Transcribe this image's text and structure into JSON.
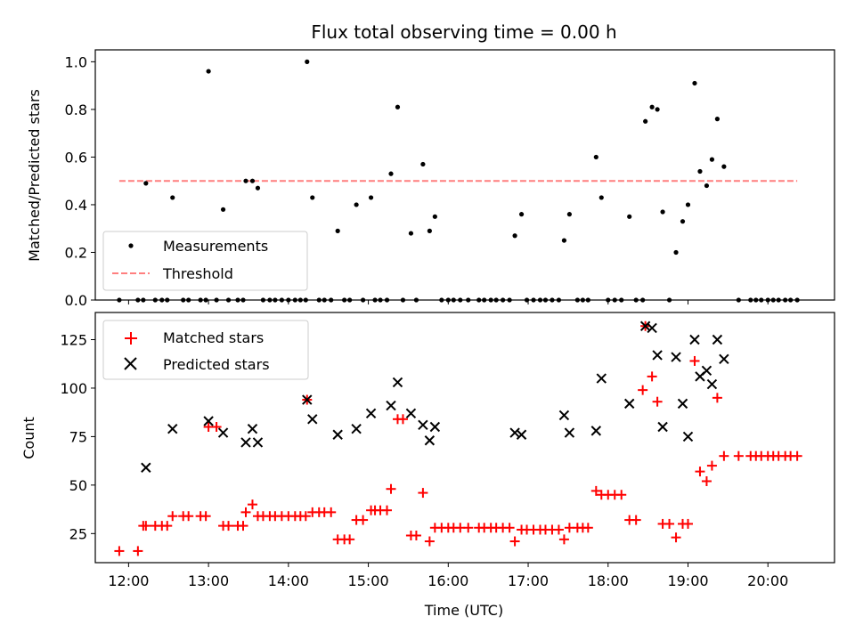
{
  "figure": {
    "title": "Flux total observing time = 0.00 h"
  },
  "colors": {
    "measurements": "#000000",
    "threshold": "#ff7f7f",
    "matched": "#ff0000",
    "predicted": "#000000"
  },
  "chart_data": [
    {
      "type": "scatter",
      "title": "Flux total observing time = 0.00 h",
      "xlabel": "",
      "ylabel": "Matched/Predicted stars",
      "xlim": [
        "11:35",
        "20:50"
      ],
      "ylim": [
        0,
        1.05
      ],
      "yticks": [
        "0.0",
        "0.2",
        "0.4",
        "0.6",
        "0.8",
        "1.0"
      ],
      "legend": {
        "placement": "lower-left",
        "entries": [
          "Measurements",
          "Threshold"
        ]
      },
      "series": [
        {
          "name": "Measurements",
          "marker": "dot",
          "color": "#000000",
          "points": [
            [
              "11:53",
              0
            ],
            [
              "12:07",
              0
            ],
            [
              "12:11",
              0
            ],
            [
              "12:13",
              0.49
            ],
            [
              "12:20",
              0
            ],
            [
              "12:25",
              0
            ],
            [
              "12:29",
              0
            ],
            [
              "12:33",
              0.43
            ],
            [
              "12:41",
              0
            ],
            [
              "12:45",
              0
            ],
            [
              "12:54",
              0
            ],
            [
              "12:58",
              0
            ],
            [
              "13:00",
              0.96
            ],
            [
              "13:06",
              0
            ],
            [
              "13:11",
              0.38
            ],
            [
              "13:15",
              0
            ],
            [
              "13:22",
              0
            ],
            [
              "13:26",
              0
            ],
            [
              "13:28",
              0.5
            ],
            [
              "13:33",
              0.5
            ],
            [
              "13:37",
              0.47
            ],
            [
              "13:41",
              0
            ],
            [
              "13:46",
              0
            ],
            [
              "13:50",
              0
            ],
            [
              "13:55",
              0
            ],
            [
              "14:00",
              0
            ],
            [
              "14:05",
              0
            ],
            [
              "14:09",
              0
            ],
            [
              "14:13",
              0
            ],
            [
              "14:14",
              1.0
            ],
            [
              "14:18",
              0.43
            ],
            [
              "14:23",
              0
            ],
            [
              "14:27",
              0
            ],
            [
              "14:32",
              0
            ],
            [
              "14:37",
              0.29
            ],
            [
              "14:42",
              0
            ],
            [
              "14:46",
              0
            ],
            [
              "14:51",
              0.4
            ],
            [
              "14:56",
              0
            ],
            [
              "15:02",
              0.43
            ],
            [
              "15:05",
              0
            ],
            [
              "15:09",
              0
            ],
            [
              "15:14",
              0
            ],
            [
              "15:17",
              0.53
            ],
            [
              "15:22",
              0.81
            ],
            [
              "15:26",
              0
            ],
            [
              "15:32",
              0.28
            ],
            [
              "15:36",
              0
            ],
            [
              "15:41",
              0.57
            ],
            [
              "15:46",
              0.29
            ],
            [
              "15:50",
              0.35
            ],
            [
              "15:55",
              0
            ],
            [
              "16:00",
              0
            ],
            [
              "16:04",
              0
            ],
            [
              "16:09",
              0
            ],
            [
              "16:15",
              0
            ],
            [
              "16:23",
              0
            ],
            [
              "16:27",
              0
            ],
            [
              "16:32",
              0
            ],
            [
              "16:36",
              0
            ],
            [
              "16:41",
              0
            ],
            [
              "16:46",
              0
            ],
            [
              "16:50",
              0.27
            ],
            [
              "16:55",
              0.36
            ],
            [
              "16:59",
              0
            ],
            [
              "17:04",
              0
            ],
            [
              "17:09",
              0
            ],
            [
              "17:13",
              0
            ],
            [
              "17:18",
              0
            ],
            [
              "17:23",
              0
            ],
            [
              "17:27",
              0.25
            ],
            [
              "17:31",
              0.36
            ],
            [
              "17:37",
              0
            ],
            [
              "17:41",
              0
            ],
            [
              "17:45",
              0
            ],
            [
              "17:51",
              0.6
            ],
            [
              "17:55",
              0.43
            ],
            [
              "18:00",
              0
            ],
            [
              "18:05",
              0
            ],
            [
              "18:10",
              0
            ],
            [
              "18:16",
              0.35
            ],
            [
              "18:21",
              0
            ],
            [
              "18:26",
              0
            ],
            [
              "18:28",
              0.75
            ],
            [
              "18:33",
              0.81
            ],
            [
              "18:37",
              0.8
            ],
            [
              "18:41",
              0.37
            ],
            [
              "18:46",
              0
            ],
            [
              "18:51",
              0.2
            ],
            [
              "18:56",
              0.33
            ],
            [
              "19:00",
              0.4
            ],
            [
              "19:05",
              0.91
            ],
            [
              "19:09",
              0.54
            ],
            [
              "19:14",
              0.48
            ],
            [
              "19:18",
              0.59
            ],
            [
              "19:22",
              0.76
            ],
            [
              "19:27",
              0.56
            ],
            [
              "19:38",
              0
            ],
            [
              "19:47",
              0
            ],
            [
              "19:51",
              0
            ],
            [
              "19:55",
              0
            ],
            [
              "20:00",
              0
            ],
            [
              "20:04",
              0
            ],
            [
              "20:08",
              0
            ],
            [
              "20:13",
              0
            ],
            [
              "20:17",
              0
            ],
            [
              "20:22",
              0
            ]
          ]
        },
        {
          "name": "Threshold",
          "style": "dashed",
          "color": "#ff7f7f",
          "x": [
            "11:53",
            "20:22"
          ],
          "y": [
            0.5,
            0.5
          ]
        }
      ]
    },
    {
      "type": "scatter",
      "xlabel": "Time (UTC)",
      "ylabel": "Count",
      "xlim": [
        "11:35",
        "20:50"
      ],
      "ylim": [
        10,
        139
      ],
      "xticks": [
        "12:00",
        "13:00",
        "14:00",
        "15:00",
        "16:00",
        "17:00",
        "18:00",
        "19:00",
        "20:00"
      ],
      "yticks": [
        "25",
        "50",
        "75",
        "100",
        "125"
      ],
      "legend": {
        "placement": "upper-left",
        "entries": [
          "Matched stars",
          "Predicted stars"
        ]
      },
      "series": [
        {
          "name": "Matched stars",
          "marker": "plus",
          "color": "#ff0000",
          "points": [
            [
              "11:53",
              16
            ],
            [
              "12:07",
              16
            ],
            [
              "12:11",
              29
            ],
            [
              "12:13",
              29
            ],
            [
              "12:20",
              29
            ],
            [
              "12:25",
              29
            ],
            [
              "12:29",
              29
            ],
            [
              "12:33",
              34
            ],
            [
              "12:41",
              34
            ],
            [
              "12:45",
              34
            ],
            [
              "12:54",
              34
            ],
            [
              "12:58",
              34
            ],
            [
              "13:00",
              80
            ],
            [
              "13:06",
              80
            ],
            [
              "13:11",
              29
            ],
            [
              "13:15",
              29
            ],
            [
              "13:22",
              29
            ],
            [
              "13:26",
              29
            ],
            [
              "13:28",
              36
            ],
            [
              "13:33",
              40
            ],
            [
              "13:37",
              34
            ],
            [
              "13:41",
              34
            ],
            [
              "13:46",
              34
            ],
            [
              "13:50",
              34
            ],
            [
              "13:55",
              34
            ],
            [
              "14:00",
              34
            ],
            [
              "14:05",
              34
            ],
            [
              "14:09",
              34
            ],
            [
              "14:13",
              34
            ],
            [
              "14:14",
              94
            ],
            [
              "14:18",
              36
            ],
            [
              "14:23",
              36
            ],
            [
              "14:27",
              36
            ],
            [
              "14:32",
              36
            ],
            [
              "14:37",
              22
            ],
            [
              "14:42",
              22
            ],
            [
              "14:46",
              22
            ],
            [
              "14:51",
              32
            ],
            [
              "14:56",
              32
            ],
            [
              "15:02",
              37
            ],
            [
              "15:05",
              37
            ],
            [
              "15:09",
              37
            ],
            [
              "15:14",
              37
            ],
            [
              "15:17",
              48
            ],
            [
              "15:22",
              84
            ],
            [
              "15:26",
              84
            ],
            [
              "15:32",
              24
            ],
            [
              "15:36",
              24
            ],
            [
              "15:41",
              46
            ],
            [
              "15:46",
              21
            ],
            [
              "15:50",
              28
            ],
            [
              "15:55",
              28
            ],
            [
              "16:00",
              28
            ],
            [
              "16:04",
              28
            ],
            [
              "16:09",
              28
            ],
            [
              "16:15",
              28
            ],
            [
              "16:23",
              28
            ],
            [
              "16:27",
              28
            ],
            [
              "16:32",
              28
            ],
            [
              "16:36",
              28
            ],
            [
              "16:41",
              28
            ],
            [
              "16:46",
              28
            ],
            [
              "16:50",
              21
            ],
            [
              "16:55",
              27
            ],
            [
              "16:59",
              27
            ],
            [
              "17:04",
              27
            ],
            [
              "17:09",
              27
            ],
            [
              "17:13",
              27
            ],
            [
              "17:18",
              27
            ],
            [
              "17:23",
              27
            ],
            [
              "17:27",
              22
            ],
            [
              "17:31",
              28
            ],
            [
              "17:37",
              28
            ],
            [
              "17:41",
              28
            ],
            [
              "17:45",
              28
            ],
            [
              "17:51",
              47
            ],
            [
              "17:55",
              45
            ],
            [
              "18:00",
              45
            ],
            [
              "18:05",
              45
            ],
            [
              "18:10",
              45
            ],
            [
              "18:16",
              32
            ],
            [
              "18:21",
              32
            ],
            [
              "18:26",
              99
            ],
            [
              "18:28",
              132
            ],
            [
              "18:33",
              106
            ],
            [
              "18:37",
              93
            ],
            [
              "18:41",
              30
            ],
            [
              "18:46",
              30
            ],
            [
              "18:51",
              23
            ],
            [
              "18:56",
              30
            ],
            [
              "19:00",
              30
            ],
            [
              "19:05",
              114
            ],
            [
              "19:09",
              57
            ],
            [
              "19:14",
              52
            ],
            [
              "19:18",
              60
            ],
            [
              "19:22",
              95
            ],
            [
              "19:27",
              65
            ],
            [
              "19:38",
              65
            ],
            [
              "19:47",
              65
            ],
            [
              "19:51",
              65
            ],
            [
              "19:55",
              65
            ],
            [
              "20:00",
              65
            ],
            [
              "20:04",
              65
            ],
            [
              "20:08",
              65
            ],
            [
              "20:13",
              65
            ],
            [
              "20:17",
              65
            ],
            [
              "20:22",
              65
            ]
          ]
        },
        {
          "name": "Predicted stars",
          "marker": "x",
          "color": "#000000",
          "points": [
            [
              "12:13",
              59
            ],
            [
              "12:33",
              79
            ],
            [
              "13:00",
              83
            ],
            [
              "13:11",
              77
            ],
            [
              "13:28",
              72
            ],
            [
              "13:33",
              79
            ],
            [
              "13:37",
              72
            ],
            [
              "14:14",
              94
            ],
            [
              "14:18",
              84
            ],
            [
              "14:37",
              76
            ],
            [
              "14:51",
              79
            ],
            [
              "15:02",
              87
            ],
            [
              "15:17",
              91
            ],
            [
              "15:22",
              103
            ],
            [
              "15:32",
              87
            ],
            [
              "15:41",
              81
            ],
            [
              "15:46",
              73
            ],
            [
              "15:50",
              80
            ],
            [
              "16:50",
              77
            ],
            [
              "16:55",
              76
            ],
            [
              "17:27",
              86
            ],
            [
              "17:31",
              77
            ],
            [
              "17:51",
              78
            ],
            [
              "17:55",
              105
            ],
            [
              "18:16",
              92
            ],
            [
              "18:28",
              132
            ],
            [
              "18:33",
              131
            ],
            [
              "18:37",
              117
            ],
            [
              "18:41",
              80
            ],
            [
              "18:51",
              116
            ],
            [
              "18:56",
              92
            ],
            [
              "19:00",
              75
            ],
            [
              "19:05",
              125
            ],
            [
              "19:09",
              106
            ],
            [
              "19:14",
              109
            ],
            [
              "19:18",
              102
            ],
            [
              "19:22",
              125
            ],
            [
              "19:27",
              115
            ]
          ]
        }
      ]
    }
  ]
}
